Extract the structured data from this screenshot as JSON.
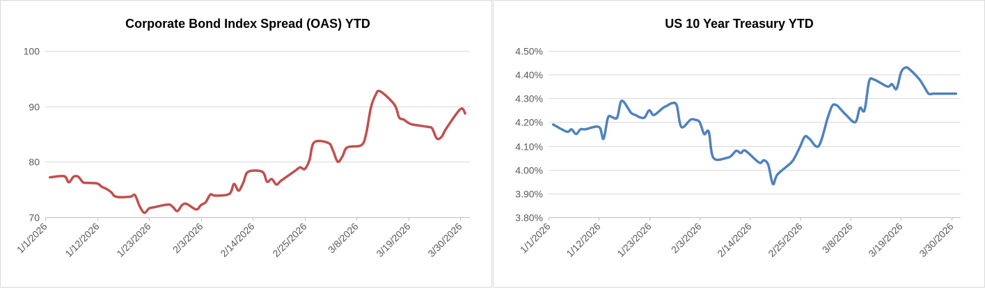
{
  "chart_data": [
    {
      "type": "line",
      "title": "Corporate Bond Index Spread (OAS) YTD",
      "xlabel": "",
      "ylabel": "",
      "ylim": [
        70,
        100
      ],
      "yticks": [
        70,
        80,
        90,
        100
      ],
      "ytick_labels": [
        "70",
        "80",
        "90",
        "100"
      ],
      "xlim": [
        "2026-01-01",
        "2026-04-01"
      ],
      "xticks": [
        "2026-01-01",
        "2026-01-12",
        "2026-01-23",
        "2026-02-03",
        "2026-02-14",
        "2026-02-25",
        "2026-03-08",
        "2026-03-19",
        "2026-03-30"
      ],
      "xtick_labels": [
        "1/1/2026",
        "1/12/2026",
        "1/23/2026",
        "2/3/2026",
        "2/14/2026",
        "2/25/2026",
        "3/8/2026",
        "3/19/2026",
        "3/30/2026"
      ],
      "grid": true,
      "legend": "none",
      "color": "#c0504d",
      "series": [
        {
          "x": [
            "2026-01-02",
            "2026-01-05",
            "2026-01-06",
            "2026-01-07",
            "2026-01-08",
            "2026-01-09",
            "2026-01-10",
            "2026-01-12",
            "2026-01-13",
            "2026-01-14",
            "2026-01-15",
            "2026-01-16",
            "2026-01-19",
            "2026-01-20",
            "2026-01-21",
            "2026-01-22",
            "2026-01-23",
            "2026-01-24",
            "2026-01-27",
            "2026-01-28",
            "2026-01-29",
            "2026-01-30",
            "2026-01-31",
            "2026-02-02",
            "2026-02-03",
            "2026-02-04",
            "2026-02-05",
            "2026-02-06",
            "2026-02-09",
            "2026-02-10",
            "2026-02-11",
            "2026-02-12",
            "2026-02-13",
            "2026-02-16",
            "2026-02-17",
            "2026-02-18",
            "2026-02-19",
            "2026-02-20",
            "2026-02-23",
            "2026-02-24",
            "2026-02-25",
            "2026-02-26",
            "2026-02-27",
            "2026-03-02",
            "2026-03-03",
            "2026-03-04",
            "2026-03-05",
            "2026-03-06",
            "2026-03-09",
            "2026-03-10",
            "2026-03-11",
            "2026-03-12",
            "2026-03-13",
            "2026-03-16",
            "2026-03-17",
            "2026-03-18",
            "2026-03-19",
            "2026-03-20",
            "2026-03-23",
            "2026-03-24",
            "2026-03-25",
            "2026-03-26",
            "2026-03-27",
            "2026-03-30",
            "2026-03-31"
          ],
          "values": [
            77.2,
            77.4,
            76.3,
            77.3,
            77.3,
            76.3,
            76.2,
            76.1,
            75.5,
            75.1,
            74.5,
            73.7,
            73.7,
            74.0,
            72.0,
            70.8,
            71.6,
            71.8,
            72.3,
            71.9,
            71.1,
            72.2,
            72.4,
            71.4,
            72.2,
            72.7,
            74.1,
            73.9,
            74.2,
            76.0,
            74.8,
            76.3,
            78.2,
            78.2,
            76.4,
            76.9,
            75.9,
            76.6,
            78.4,
            79.0,
            78.7,
            80.3,
            83.5,
            83.4,
            82.0,
            80.0,
            81.0,
            82.6,
            83.0,
            85.0,
            89.7,
            92.0,
            92.7,
            90.3,
            88.0,
            87.6,
            87.0,
            86.7,
            86.3,
            86.0,
            84.2,
            84.5,
            86.0,
            89.5,
            88.7
          ]
        }
      ]
    },
    {
      "type": "line",
      "title": "US 10 Year Treasury YTD",
      "xlabel": "",
      "ylabel": "",
      "ylim": [
        3.8,
        4.5
      ],
      "yticks": [
        3.8,
        3.9,
        4.0,
        4.1,
        4.2,
        4.3,
        4.4,
        4.5
      ],
      "ytick_labels": [
        "3.80%",
        "3.90%",
        "4.00%",
        "4.10%",
        "4.20%",
        "4.30%",
        "4.40%",
        "4.50%"
      ],
      "xlim": [
        "2026-01-01",
        "2026-04-01"
      ],
      "xticks": [
        "2026-01-01",
        "2026-01-12",
        "2026-01-23",
        "2026-02-03",
        "2026-02-14",
        "2026-02-25",
        "2026-03-08",
        "2026-03-19",
        "2026-03-30"
      ],
      "xtick_labels": [
        "1/1/2026",
        "1/12/2026",
        "1/23/2026",
        "2/3/2026",
        "2/14/2026",
        "2/25/2026",
        "3/8/2026",
        "3/19/2026",
        "3/30/2026"
      ],
      "grid": true,
      "legend": "none",
      "color": "#4f81bd",
      "series": [
        {
          "x": [
            "2026-01-02",
            "2026-01-05",
            "2026-01-06",
            "2026-01-07",
            "2026-01-08",
            "2026-01-09",
            "2026-01-12",
            "2026-01-13",
            "2026-01-14",
            "2026-01-15",
            "2026-01-16",
            "2026-01-17",
            "2026-01-19",
            "2026-01-20",
            "2026-01-21",
            "2026-01-22",
            "2026-01-23",
            "2026-01-24",
            "2026-01-26",
            "2026-01-27",
            "2026-01-28",
            "2026-01-29",
            "2026-01-30",
            "2026-02-01",
            "2026-02-02",
            "2026-02-03",
            "2026-02-04",
            "2026-02-05",
            "2026-02-06",
            "2026-02-09",
            "2026-02-10",
            "2026-02-11",
            "2026-02-12",
            "2026-02-13",
            "2026-02-16",
            "2026-02-17",
            "2026-02-18",
            "2026-02-19",
            "2026-02-20",
            "2026-02-23",
            "2026-02-24",
            "2026-02-25",
            "2026-02-26",
            "2026-02-27",
            "2026-03-01",
            "2026-03-03",
            "2026-03-04",
            "2026-03-05",
            "2026-03-06",
            "2026-03-07",
            "2026-03-09",
            "2026-03-10",
            "2026-03-11",
            "2026-03-12",
            "2026-03-13",
            "2026-03-16",
            "2026-03-17",
            "2026-03-18",
            "2026-03-19",
            "2026-03-20",
            "2026-03-21",
            "2026-03-23",
            "2026-03-24",
            "2026-03-25",
            "2026-03-26",
            "2026-03-27",
            "2026-03-30",
            "2026-03-31"
          ],
          "values": [
            4.19,
            4.16,
            4.17,
            4.15,
            4.17,
            4.17,
            4.18,
            4.13,
            4.22,
            4.22,
            4.22,
            4.29,
            4.24,
            4.23,
            4.22,
            4.22,
            4.25,
            4.23,
            4.26,
            4.27,
            4.28,
            4.27,
            4.18,
            4.21,
            4.21,
            4.2,
            4.15,
            4.16,
            4.05,
            4.05,
            4.06,
            4.08,
            4.07,
            4.08,
            4.03,
            4.04,
            4.02,
            3.94,
            3.98,
            4.03,
            4.06,
            4.1,
            4.14,
            4.13,
            4.1,
            4.22,
            4.27,
            4.27,
            4.25,
            4.23,
            4.2,
            4.26,
            4.25,
            4.37,
            4.38,
            4.35,
            4.36,
            4.34,
            4.41,
            4.43,
            4.42,
            4.38,
            4.35,
            4.32,
            4.32,
            4.32,
            4.32,
            4.32
          ]
        }
      ]
    }
  ]
}
